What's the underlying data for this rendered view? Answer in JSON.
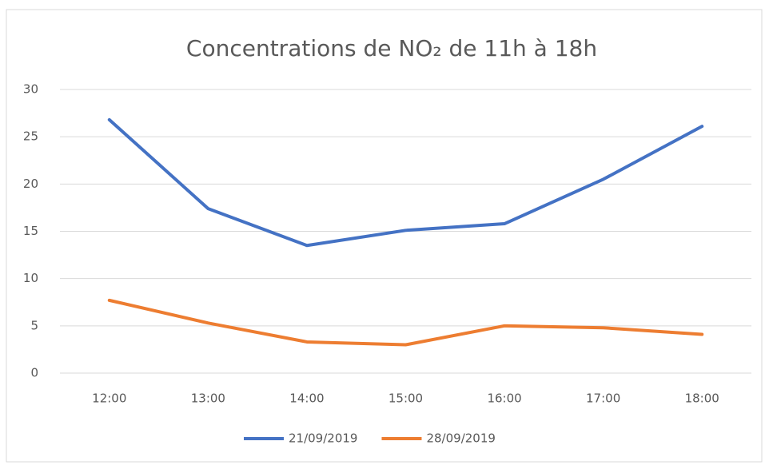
{
  "chart_data": {
    "type": "line",
    "title": "Concentrations de NO₂ de 11h à 18h",
    "categories": [
      "12:00",
      "13:00",
      "14:00",
      "15:00",
      "16:00",
      "17:00",
      "18:00"
    ],
    "series": [
      {
        "name": "21/09/2019",
        "color": "#4472c4",
        "values": [
          26.8,
          17.4,
          13.5,
          15.1,
          15.8,
          20.5,
          26.1
        ]
      },
      {
        "name": "28/09/2019",
        "color": "#ed7d31",
        "values": [
          7.7,
          5.3,
          3.3,
          3.0,
          5.0,
          4.8,
          4.1
        ]
      }
    ],
    "ylim": [
      0,
      30
    ],
    "yticks": [
      0,
      5,
      10,
      15,
      20,
      25,
      30
    ],
    "grid": true,
    "legend": "bottom"
  }
}
